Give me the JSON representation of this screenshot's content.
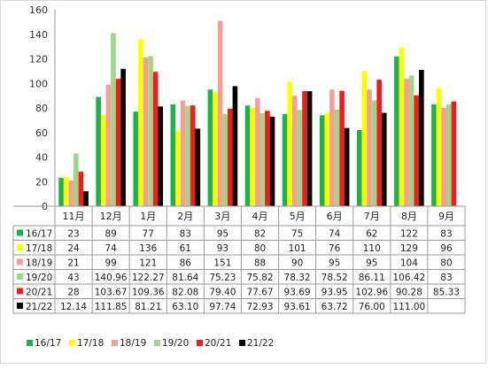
{
  "chart_data": {
    "type": "bar",
    "title": "",
    "xlabel": "",
    "ylabel": "",
    "ylim": [
      0,
      160
    ],
    "yticks": [
      0,
      20,
      40,
      60,
      80,
      100,
      120,
      140,
      160
    ],
    "grid": false,
    "legend_position": "bottom",
    "categories": [
      "11月",
      "12月",
      "1月",
      "2月",
      "3月",
      "4月",
      "5月",
      "6月",
      "7月",
      "8月",
      "9月"
    ],
    "series": [
      {
        "name": "16/17",
        "color": "#1db24a",
        "values": [
          23,
          89,
          77,
          83,
          95,
          82,
          75,
          74,
          62,
          122,
          83
        ],
        "labels": [
          "23",
          "89",
          "77",
          "83",
          "95",
          "82",
          "75",
          "74",
          "62",
          "122",
          "83"
        ]
      },
      {
        "name": "17/18",
        "color": "#ffff00",
        "values": [
          24,
          74,
          136,
          61,
          93,
          80,
          101,
          76,
          110,
          129,
          96
        ],
        "labels": [
          "24",
          "74",
          "136",
          "61",
          "93",
          "80",
          "101",
          "76",
          "110",
          "129",
          "96"
        ]
      },
      {
        "name": "18/19",
        "color": "#f4a09a",
        "values": [
          21,
          99,
          121,
          86,
          151,
          88,
          90,
          95,
          95,
          104,
          80
        ],
        "labels": [
          "21",
          "99",
          "121",
          "86",
          "151",
          "88",
          "90",
          "95",
          "95",
          "104",
          "80"
        ]
      },
      {
        "name": "19/20",
        "color": "#a2d686",
        "values": [
          43,
          140.96,
          122.27,
          81.64,
          75.23,
          75.82,
          78.32,
          78.52,
          86.11,
          106.42,
          83
        ],
        "labels": [
          "43",
          "140.96",
          "122.27",
          "81.64",
          "75.23",
          "75.82",
          "78.32",
          "78.52",
          "86.11",
          "106.42",
          "83"
        ]
      },
      {
        "name": "20/21",
        "color": "#ee1c1c",
        "values": [
          28,
          103.67,
          109.36,
          82.08,
          79.4,
          77.67,
          93.69,
          93.95,
          102.96,
          90.28,
          85.33
        ],
        "labels": [
          "28",
          "103.67",
          "109.36",
          "82.08",
          "79.40",
          "77.67",
          "93.69",
          "93.95",
          "102.96",
          "90.28",
          "85.33"
        ]
      },
      {
        "name": "21/22",
        "color": "#000000",
        "values": [
          12.14,
          111.85,
          81.21,
          63.1,
          97.74,
          72.93,
          93.61,
          63.72,
          76.0,
          111.0,
          null
        ],
        "labels": [
          "12.14",
          "111.85",
          "81.21",
          "63.10",
          "97.74",
          "72.93",
          "93.61",
          "63.72",
          "76.00",
          "111.00",
          ""
        ]
      }
    ]
  }
}
